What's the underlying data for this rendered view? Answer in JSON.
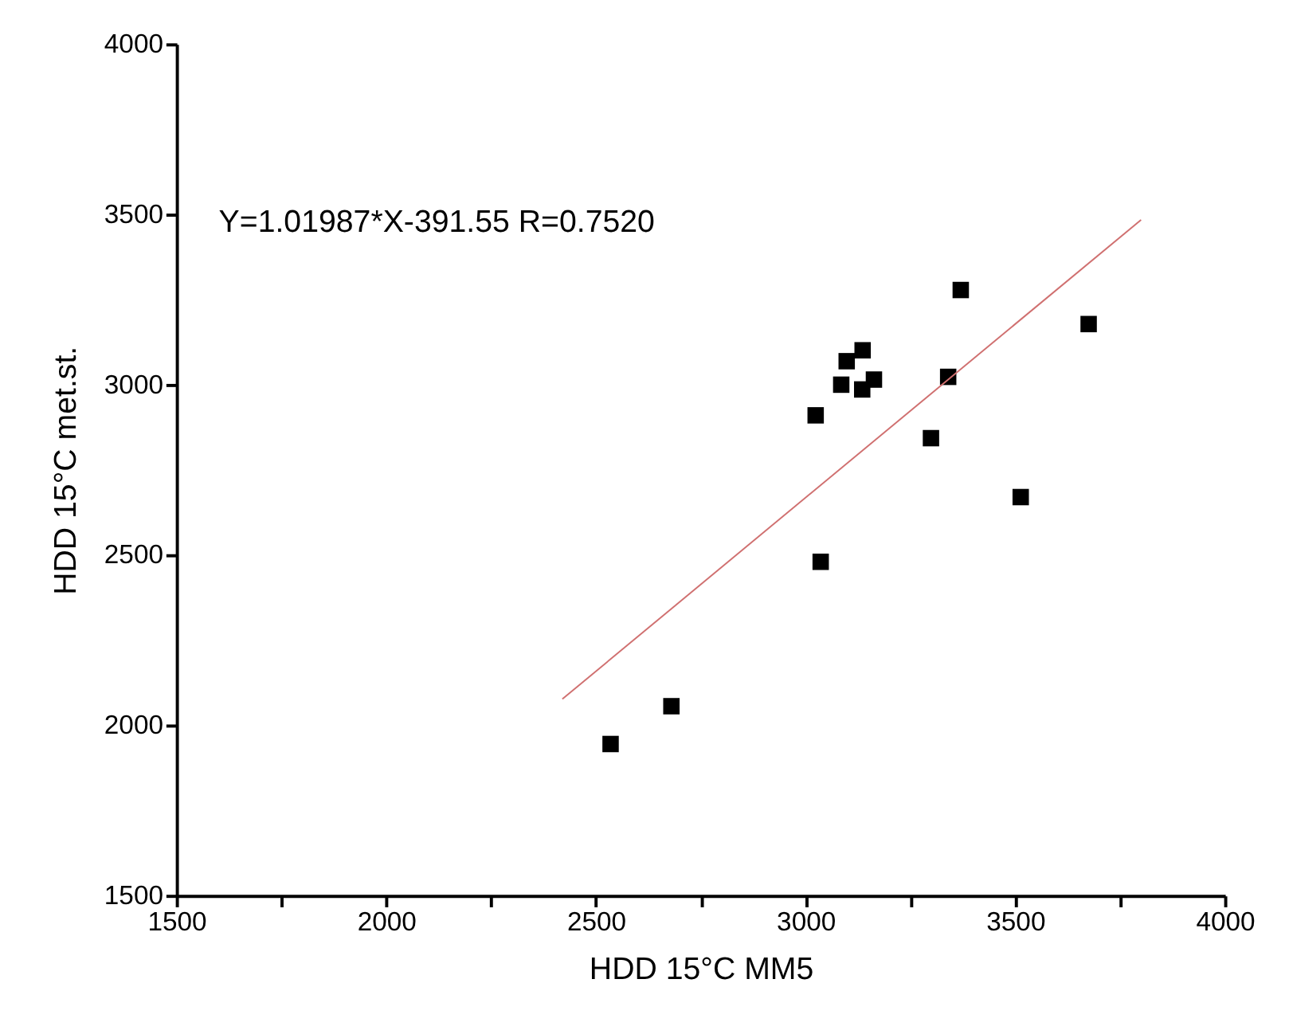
{
  "chart_data": {
    "type": "scatter",
    "xlabel": "HDD 15°C MM5",
    "ylabel": "HDD 15°C met.st.",
    "annotations": [
      "Y=1.01987*X-391.55 R=0.7520"
    ],
    "xlim": [
      1500,
      4000
    ],
    "ylim": [
      1500,
      4000
    ],
    "xticks": [
      1500,
      {
        "value": 1750,
        "label": null
      },
      2000,
      {
        "value": 2250,
        "label": null
      },
      2500,
      {
        "value": 2750,
        "label": null
      },
      3000,
      {
        "value": 3250,
        "label": null
      },
      3500,
      {
        "value": 3750,
        "label": null
      },
      4000
    ],
    "yticks": [
      1500,
      2000,
      2500,
      3000,
      3500,
      4000
    ],
    "grid": false,
    "marker": "square",
    "series": [
      {
        "color": "#000000",
        "x": [
          2535,
          2680,
          3024,
          3036,
          3085,
          3098,
          3136,
          3135,
          3163,
          3299,
          3340,
          3370,
          3513,
          3675
        ],
        "values": [
          1945,
          2056,
          2910,
          2480,
          3000,
          3069,
          3101,
          2986,
          3015,
          2843,
          3023,
          3278,
          2670,
          3178
        ]
      },
      {
        "type": "line",
        "color": "#d07070",
        "x": [
          2420,
          3800
        ],
        "values": [
          2077,
          3484
        ],
        "line_style": "solid",
        "marker": "none"
      }
    ]
  }
}
